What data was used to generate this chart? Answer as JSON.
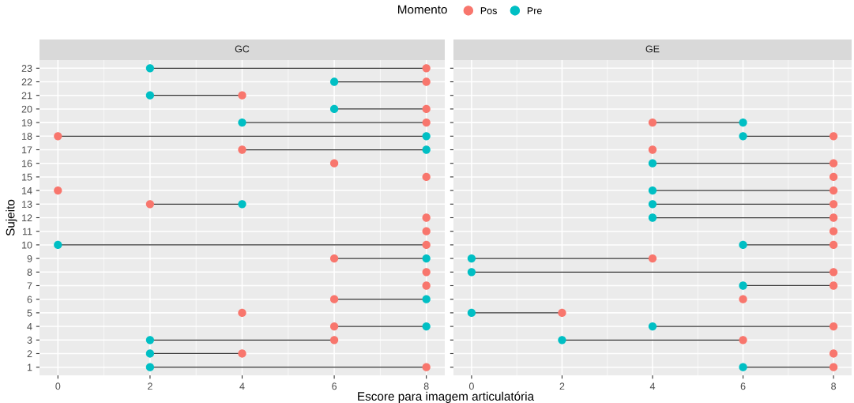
{
  "chart_data": [
    {
      "type": "scatter",
      "orientation": "horizontal",
      "title": "GC",
      "xlabel": "Escore para imagem articulatória",
      "ylabel": "Sujeito",
      "legend_title": "Momento",
      "legend": "top",
      "grid": true,
      "marker": "circle",
      "xlim": [
        -0.4,
        8.4
      ],
      "xticks": [
        0,
        2,
        4,
        6,
        8
      ],
      "categories": [
        "23",
        "22",
        "21",
        "20",
        "19",
        "18",
        "17",
        "16",
        "15",
        "14",
        "13",
        "12",
        "11",
        "10",
        "9",
        "8",
        "7",
        "6",
        "5",
        "4",
        "3",
        "2",
        "1"
      ],
      "series": [
        {
          "name": "Pos",
          "color": "#f8766d",
          "values": [
            8,
            8,
            4,
            8,
            8,
            0,
            4,
            6,
            8,
            0,
            2,
            8,
            8,
            8,
            6,
            8,
            8,
            6,
            4,
            6,
            6,
            4,
            8
          ]
        },
        {
          "name": "Pre",
          "color": "#00bfc4",
          "values": [
            2,
            6,
            2,
            6,
            4,
            8,
            8,
            null,
            null,
            null,
            4,
            null,
            null,
            0,
            8,
            null,
            null,
            8,
            null,
            8,
            2,
            2,
            2
          ]
        }
      ]
    },
    {
      "type": "scatter",
      "orientation": "horizontal",
      "title": "GE",
      "grid": true,
      "marker": "circle",
      "tick_labels": "x",
      "xlim": [
        -0.4,
        8.4
      ],
      "xticks": [
        0,
        2,
        4,
        6,
        8
      ],
      "categories": [
        "23",
        "22",
        "21",
        "20",
        "19",
        "18",
        "17",
        "16",
        "15",
        "14",
        "13",
        "12",
        "11",
        "10",
        "9",
        "8",
        "7",
        "6",
        "5",
        "4",
        "3",
        "2",
        "1"
      ],
      "series": [
        {
          "color": "#f8766d",
          "values": [
            null,
            null,
            null,
            null,
            4,
            8,
            4,
            8,
            8,
            8,
            8,
            8,
            8,
            8,
            4,
            8,
            8,
            6,
            2,
            8,
            6,
            8,
            8
          ]
        },
        {
          "color": "#00bfc4",
          "values": [
            null,
            null,
            null,
            null,
            6,
            6,
            null,
            4,
            null,
            4,
            4,
            4,
            null,
            6,
            0,
            0,
            6,
            null,
            0,
            4,
            2,
            null,
            6
          ]
        }
      ]
    }
  ]
}
